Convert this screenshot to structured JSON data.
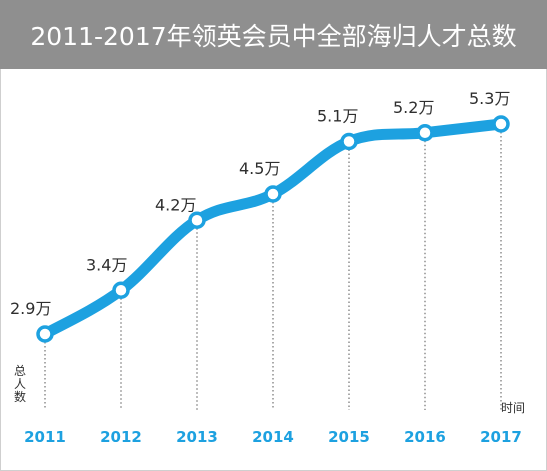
{
  "title": "2011-2017年领英会员中全部海归人才总数",
  "colors": {
    "line": "#1da1e0",
    "title_bg": "#8f8f8f",
    "axis_text": "#1da1e0"
  },
  "chart_data": {
    "type": "line",
    "title": "2011-2017年领英会员中全部海归人才总数",
    "xlabel": "时间",
    "ylabel": "总人数",
    "categories": [
      "2011",
      "2012",
      "2013",
      "2014",
      "2015",
      "2016",
      "2017"
    ],
    "values": [
      2.9,
      3.4,
      4.2,
      4.5,
      5.1,
      5.2,
      5.3
    ],
    "data_labels": [
      "2.9万",
      "3.4万",
      "4.2万",
      "4.5万",
      "5.1万",
      "5.2万",
      "5.3万"
    ],
    "unit": "万",
    "grid": "dotted vertical drop lines",
    "legend": "none"
  }
}
